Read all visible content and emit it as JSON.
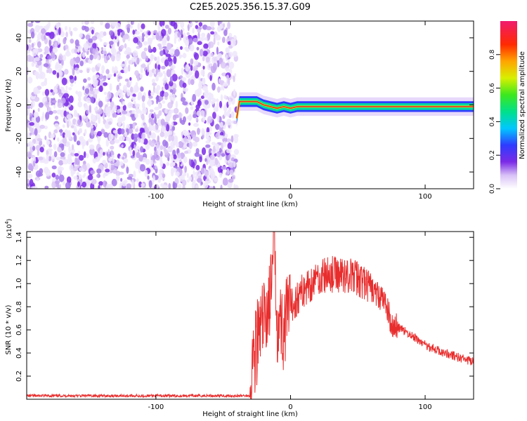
{
  "title": "C2E5.2025.356.15.37.G09",
  "colors": {
    "signal": "#e82d2d",
    "noise": "#7b2be6",
    "axis": "#000000"
  },
  "chart_data": [
    {
      "type": "heatmap",
      "xlabel": "Height of straight line (km)",
      "ylabel": "Frequency (Hz)",
      "xlim": [
        -196,
        136
      ],
      "ylim": [
        -50,
        50
      ],
      "x_ticks": [
        -100,
        0,
        100
      ],
      "x_tick_labels": [
        "-100",
        "0",
        "100"
      ],
      "y_ticks": [
        -40,
        -20,
        0,
        20,
        40
      ],
      "y_tick_labels": [
        "-40",
        "-20",
        "0",
        "20",
        "40"
      ],
      "noise_region": [
        -196,
        -40
      ],
      "signal_trace": {
        "x": [
          -40,
          -38,
          -35,
          -30,
          -25,
          -20,
          -15,
          -10,
          -5,
          0,
          5,
          10,
          20,
          30,
          40,
          50,
          60,
          70,
          80,
          90,
          100,
          110,
          120,
          136
        ],
        "y": [
          -8,
          2,
          2,
          2,
          2,
          0,
          -1,
          -2,
          -1,
          -2,
          -1,
          -1,
          -1,
          -1,
          -1,
          -1,
          -1,
          -1,
          -1,
          -1,
          -1,
          -1,
          -1,
          -1
        ]
      },
      "colorbar": {
        "label": "Normalized spectral amplitude",
        "range": [
          0,
          1
        ],
        "ticks": [
          0.0,
          0.2,
          0.4,
          0.6,
          0.8
        ],
        "tick_labels": [
          "0.0",
          "0.2",
          "0.4",
          "0.6",
          "0.8"
        ]
      }
    },
    {
      "type": "line",
      "xlabel": "Height of straight line (km)",
      "ylabel": "SNR (10 * v/v)",
      "yscale_label_base": "(x10",
      "yscale_label_exp": "4",
      "yscale_label_close": ")",
      "xlim": [
        -196,
        136
      ],
      "ylim": [
        0,
        1.45
      ],
      "x_ticks": [
        -100,
        0,
        100
      ],
      "x_tick_labels": [
        "-100",
        "0",
        "100"
      ],
      "y_ticks": [
        0.2,
        0.4,
        0.6,
        0.8,
        1.0,
        1.2,
        1.4
      ],
      "y_tick_labels": [
        "0.2",
        "0.4",
        "0.6",
        "0.8",
        "1.0",
        "1.2",
        "1.4"
      ],
      "series": [
        {
          "x": [
            -196,
            -150,
            -100,
            -60,
            -30,
            -28,
            -25,
            -22,
            -18,
            -14,
            -12,
            -10,
            -5,
            0,
            10,
            20,
            30,
            40,
            50,
            60,
            70,
            75,
            80,
            90,
            100,
            110,
            120,
            130,
            136
          ],
          "y": [
            0.03,
            0.03,
            0.03,
            0.03,
            0.03,
            0.35,
            0.5,
            0.6,
            0.75,
            0.95,
            1.45,
            0.7,
            0.6,
            0.8,
            0.95,
            1.05,
            1.08,
            1.08,
            1.05,
            0.95,
            0.85,
            0.65,
            0.62,
            0.55,
            0.47,
            0.42,
            0.38,
            0.34,
            0.32
          ]
        }
      ]
    }
  ]
}
